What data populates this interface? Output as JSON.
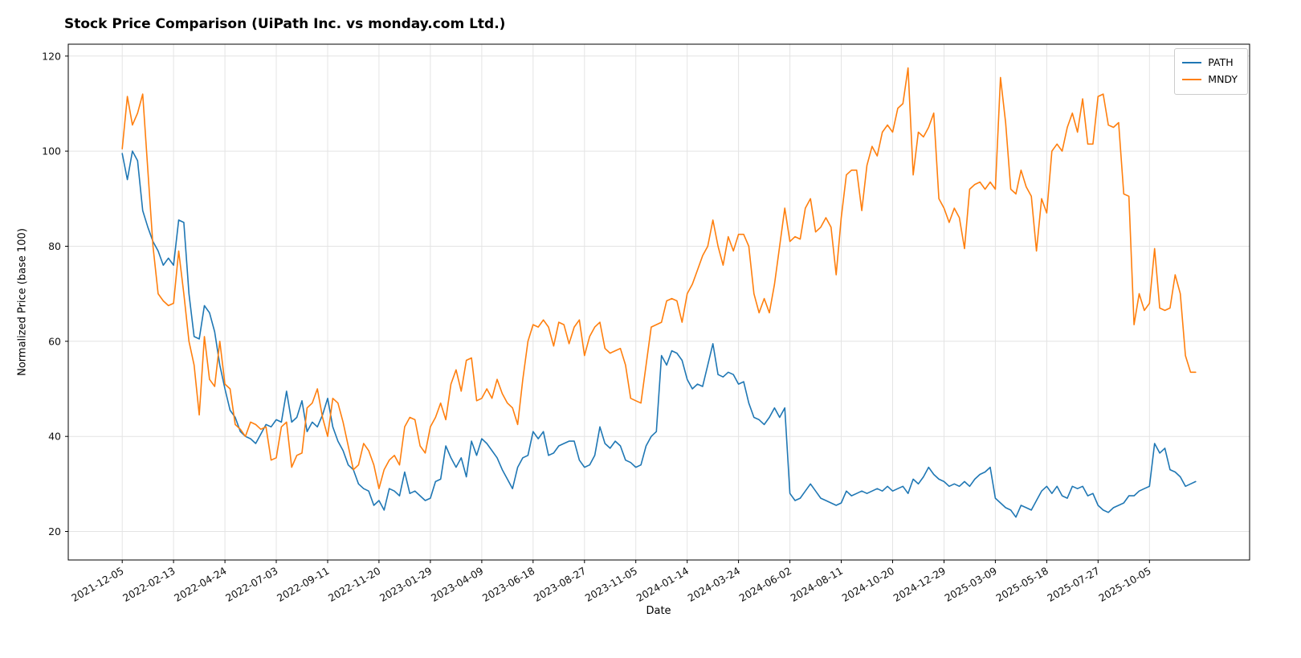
{
  "chart_data": {
    "type": "line",
    "title": "Stock Price Comparison (UiPath Inc. vs monday.com Ltd.)",
    "xlabel": "Date",
    "ylabel": "Normalized Price (base 100)",
    "grid": true,
    "legend_position": "upper right",
    "x_unit": "weekly",
    "ylim": [
      14,
      122.5
    ],
    "xlim": [
      -10.5,
      219.5
    ],
    "y_ticks": [
      20,
      40,
      60,
      80,
      100,
      120
    ],
    "x_tick_indices": [
      0,
      10,
      20,
      30,
      40,
      50,
      60,
      70,
      80,
      90,
      100,
      110,
      120,
      130,
      140,
      150,
      160,
      170,
      180,
      190,
      200
    ],
    "x_tick_labels": [
      "2021-12-05",
      "2022-02-13",
      "2022-04-24",
      "2022-07-03",
      "2022-09-11",
      "2022-11-20",
      "2023-01-29",
      "2023-04-09",
      "2023-06-18",
      "2023-08-27",
      "2023-11-05",
      "2024-01-14",
      "2024-03-24",
      "2024-06-02",
      "2024-08-11",
      "2024-10-20",
      "2024-12-29",
      "2025-03-09",
      "2025-05-18",
      "2025-07-27",
      "2025-10-05"
    ],
    "series": [
      {
        "name": "PATH",
        "color": "#1f77b4",
        "values": [
          99.5,
          94,
          100,
          98,
          87.5,
          84,
          81,
          79,
          76,
          77.5,
          76,
          85.5,
          85,
          70,
          61,
          60.5,
          67.5,
          66,
          62,
          55,
          50,
          45.5,
          44,
          41,
          40,
          39.5,
          38.5,
          40.5,
          42.5,
          42,
          43.5,
          43,
          49.5,
          43,
          44,
          47.5,
          41,
          43,
          42,
          44.5,
          48,
          42,
          39,
          37,
          34,
          33,
          30,
          29,
          28.5,
          25.5,
          26.5,
          24.5,
          29,
          28.5,
          27.5,
          32.5,
          28,
          28.5,
          27.5,
          26.5,
          27,
          30.5,
          31,
          38,
          35.5,
          33.5,
          35.5,
          31.5,
          39,
          36,
          39.5,
          38.5,
          37,
          35.5,
          33,
          31,
          29,
          33.5,
          35.5,
          36,
          41,
          39.5,
          41,
          36,
          36.5,
          38,
          38.5,
          39,
          39,
          35,
          33.5,
          34,
          36,
          42,
          38.5,
          37.5,
          39,
          38,
          35,
          34.5,
          33.5,
          34,
          38,
          40,
          41,
          57,
          55,
          58,
          57.5,
          56,
          52,
          50,
          51,
          50.5,
          55,
          59.5,
          53,
          52.5,
          53.5,
          53,
          51,
          51.5,
          47,
          44,
          43.5,
          42.5,
          44,
          46,
          44,
          46,
          28,
          26.5,
          27,
          28.5,
          30,
          28.5,
          27,
          26.5,
          26,
          25.5,
          26,
          28.5,
          27.5,
          28,
          28.5,
          28,
          28.5,
          29,
          28.5,
          29.5,
          28.5,
          29,
          29.5,
          28,
          31,
          30,
          31.5,
          33.5,
          32,
          31,
          30.5,
          29.5,
          30,
          29.5,
          30.5,
          29.5,
          31,
          32,
          32.5,
          33.5,
          27,
          26,
          25,
          24.5,
          23,
          25.5,
          25,
          24.5,
          26.5,
          28.5,
          29.5,
          28,
          29.5,
          27.5,
          27,
          29.5,
          29,
          29.5,
          27.5,
          28,
          25.5,
          24.5,
          24,
          25,
          25.5,
          26,
          27.5,
          27.5,
          28.5,
          29,
          29.5,
          38.5,
          36.5,
          37.5,
          33,
          32.5,
          31.5,
          29.5,
          30,
          30.5
        ]
      },
      {
        "name": "MNDY",
        "color": "#ff7f0e",
        "values": [
          100.5,
          111.5,
          105.5,
          108,
          112,
          96,
          80,
          70,
          68.5,
          67.5,
          68,
          79,
          70,
          60,
          55,
          44.5,
          61,
          52,
          50.5,
          60,
          51,
          50,
          42.5,
          41.5,
          40,
          43,
          42.5,
          41.5,
          42,
          35,
          35.5,
          42,
          43,
          33.5,
          36,
          36.5,
          46,
          47,
          50,
          44,
          40,
          48,
          47,
          43,
          38,
          33,
          34,
          38.5,
          37,
          34,
          29,
          33,
          35,
          36,
          34,
          42,
          44,
          43.5,
          38,
          36.5,
          42,
          44,
          47,
          43.5,
          51,
          54,
          49.5,
          56,
          56.5,
          47.5,
          48,
          50,
          48,
          52,
          49,
          47,
          46,
          42.5,
          52,
          60,
          63.5,
          63,
          64.5,
          63,
          59,
          64,
          63.5,
          59.5,
          63,
          64.5,
          57,
          61,
          63,
          64,
          58.5,
          57.5,
          58,
          58.5,
          55,
          48,
          47.5,
          47,
          55,
          63,
          63.5,
          64,
          68.5,
          69,
          68.5,
          64,
          70,
          72,
          75,
          78,
          80,
          85.5,
          80,
          76,
          82,
          79,
          82.5,
          82.5,
          80,
          70,
          66,
          69,
          66,
          72,
          80,
          88,
          81,
          82,
          81.5,
          88,
          90,
          83,
          84,
          86,
          84,
          74,
          86,
          95,
          96,
          96,
          87.5,
          97,
          101,
          99,
          104,
          105.5,
          104,
          109,
          110,
          117.5,
          95,
          104,
          103,
          105,
          108,
          90,
          88,
          85,
          88,
          86,
          79.5,
          92,
          93,
          93.5,
          92,
          93.5,
          92,
          115.5,
          106,
          92,
          91,
          96,
          92.5,
          90.5,
          79,
          90,
          87,
          100,
          101.5,
          100,
          105,
          108,
          104,
          111,
          101.5,
          101.5,
          111.5,
          112,
          105.5,
          105,
          106,
          91,
          90.5,
          63.5,
          70,
          66.5,
          68,
          79.5,
          67,
          66.5,
          67,
          74,
          70,
          57,
          53.5,
          53.5
        ]
      }
    ]
  }
}
